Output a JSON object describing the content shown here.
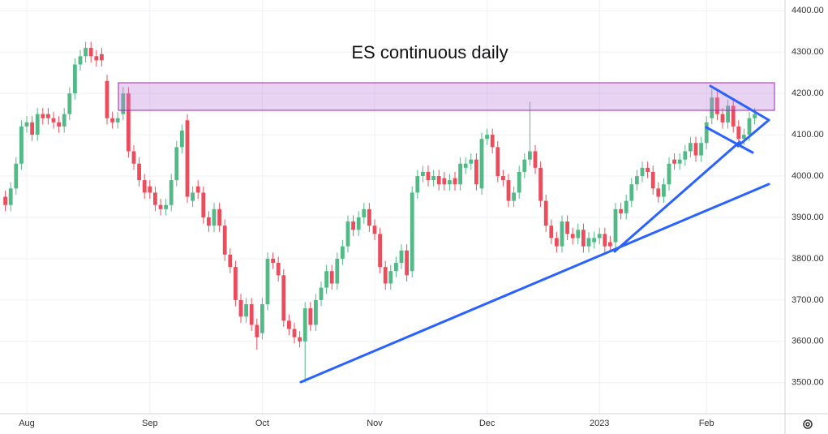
{
  "chart_data": {
    "type": "candlestick",
    "title": "ES continuous daily",
    "categories": [
      null,
      null,
      null,
      null,
      "Aug",
      null,
      null,
      null,
      null,
      null,
      null,
      null,
      null,
      null,
      null,
      null,
      null,
      null,
      null,
      null,
      null,
      null,
      null,
      null,
      null,
      null,
      null,
      "Sep",
      null,
      null,
      null,
      null,
      null,
      null,
      null,
      null,
      null,
      null,
      null,
      null,
      null,
      null,
      null,
      null,
      null,
      null,
      null,
      null,
      "Oct",
      null,
      null,
      null,
      null,
      null,
      null,
      null,
      null,
      null,
      null,
      null,
      null,
      null,
      null,
      null,
      null,
      null,
      null,
      null,
      null,
      "Nov",
      null,
      null,
      null,
      null,
      null,
      null,
      null,
      null,
      null,
      null,
      null,
      null,
      null,
      null,
      null,
      null,
      null,
      null,
      null,
      null,
      "Dec",
      null,
      null,
      null,
      null,
      null,
      null,
      null,
      null,
      null,
      null,
      null,
      null,
      null,
      null,
      null,
      null,
      null,
      null,
      null,
      null,
      "2023",
      null,
      null,
      null,
      null,
      null,
      null,
      null,
      null,
      null,
      null,
      null,
      null,
      null,
      null,
      null,
      null,
      null,
      null,
      null,
      "Feb",
      null,
      null,
      null,
      null,
      null,
      null,
      null,
      null,
      null
    ],
    "open": [
      3950,
      3930,
      3970,
      4030,
      4120,
      4130,
      4100,
      4150,
      4150,
      4140,
      4130,
      4120,
      4150,
      4200,
      4270,
      4290,
      4310,
      4290,
      4295,
      4230,
      4140,
      4130,
      4150,
      4200,
      4060,
      4030,
      3990,
      3975,
      3960,
      3930,
      3920,
      3930,
      3990,
      4070,
      4135,
      3940,
      3975,
      3960,
      3900,
      3880,
      3920,
      3880,
      3810,
      3780,
      3700,
      3660,
      3690,
      3640,
      3620,
      3690,
      3800,
      3790,
      3760,
      3650,
      3630,
      3610,
      3600,
      3680,
      3640,
      3700,
      3730,
      3770,
      3740,
      3800,
      3830,
      3890,
      3870,
      3900,
      3920,
      3880,
      3860,
      3780,
      3740,
      3770,
      3790,
      3820,
      3770,
      3960,
      4000,
      4010,
      3990,
      4000,
      3995,
      3980,
      3995,
      3980,
      4020,
      4030,
      4040,
      3970,
      4090,
      4100,
      4070,
      4000,
      3990,
      3940,
      3960,
      4010,
      4040,
      4060,
      4020,
      3940,
      3880,
      3850,
      3830,
      3890,
      3860,
      3850,
      3870,
      3830,
      3840,
      3850,
      3860,
      3840,
      3840,
      3920,
      3910,
      3940,
      3980,
      4000,
      4020,
      4010,
      3970,
      3950,
      3980,
      4040,
      4030,
      4040,
      4060,
      4080,
      4050,
      4080,
      4140,
      4190,
      4150,
      4130,
      4170,
      4120,
      4090,
      4100,
      4140
    ],
    "high": [
      3965,
      3985,
      4045,
      4135,
      4145,
      4145,
      4165,
      4165,
      4165,
      4155,
      4145,
      4165,
      4215,
      4285,
      4305,
      4325,
      4325,
      4305,
      4310,
      4245,
      4155,
      4155,
      4215,
      4215,
      4075,
      4045,
      4005,
      3990,
      3975,
      3945,
      3945,
      4005,
      4085,
      4125,
      4150,
      3975,
      3990,
      3975,
      3915,
      3935,
      3935,
      3895,
      3825,
      3795,
      3715,
      3705,
      3705,
      3655,
      3705,
      3815,
      3815,
      3805,
      3775,
      3665,
      3645,
      3625,
      3695,
      3695,
      3715,
      3745,
      3785,
      3785,
      3815,
      3845,
      3905,
      3905,
      3915,
      3935,
      3935,
      3895,
      3875,
      3795,
      3785,
      3805,
      3835,
      3835,
      3975,
      4015,
      4025,
      4025,
      4015,
      4015,
      4010,
      4005,
      4010,
      4045,
      4045,
      4055,
      4055,
      4105,
      4115,
      4115,
      4085,
      4015,
      4005,
      3975,
      4025,
      4055,
      4180,
      4075,
      4035,
      3955,
      3895,
      3865,
      3905,
      3905,
      3875,
      3885,
      3885,
      3865,
      3865,
      3875,
      3875,
      3855,
      3935,
      3935,
      3955,
      3995,
      4015,
      4035,
      4035,
      4025,
      3985,
      3995,
      4045,
      4055,
      4055,
      4075,
      4095,
      4095,
      4095,
      4145,
      4210,
      4205,
      4165,
      4185,
      4185,
      4135,
      4115,
      4155,
      4165
    ],
    "low": [
      3915,
      3915,
      3955,
      4015,
      4105,
      4085,
      4085,
      4125,
      4125,
      4115,
      4105,
      4105,
      4135,
      4185,
      4255,
      4275,
      4275,
      4265,
      4265,
      4125,
      4115,
      4115,
      4135,
      4045,
      4015,
      3975,
      3945,
      3945,
      3915,
      3905,
      3905,
      3915,
      3975,
      4055,
      3935,
      3925,
      3945,
      3885,
      3865,
      3865,
      3865,
      3795,
      3765,
      3685,
      3645,
      3645,
      3625,
      3580,
      3605,
      3675,
      3775,
      3745,
      3635,
      3615,
      3595,
      3585,
      3500,
      3625,
      3625,
      3685,
      3715,
      3725,
      3725,
      3785,
      3815,
      3855,
      3855,
      3885,
      3865,
      3845,
      3765,
      3725,
      3725,
      3755,
      3775,
      3745,
      3755,
      3945,
      3985,
      3975,
      3975,
      3965,
      3965,
      3965,
      3965,
      3965,
      4005,
      4015,
      3965,
      3955,
      4075,
      4055,
      3985,
      3975,
      3925,
      3925,
      3945,
      3995,
      4025,
      4005,
      3925,
      3865,
      3835,
      3815,
      3815,
      3845,
      3835,
      3835,
      3815,
      3815,
      3825,
      3835,
      3815,
      3815,
      3825,
      3895,
      3895,
      3925,
      3965,
      3985,
      3995,
      3955,
      3935,
      3935,
      3965,
      4015,
      4015,
      4025,
      4045,
      4035,
      4035,
      4065,
      4125,
      4135,
      4115,
      4115,
      4105,
      4075,
      4075,
      4085,
      4125
    ],
    "close": [
      3930,
      3970,
      4030,
      4120,
      4130,
      4100,
      4150,
      4140,
      4140,
      4130,
      4120,
      4150,
      4200,
      4270,
      4290,
      4310,
      4290,
      4280,
      4280,
      4140,
      4130,
      4140,
      4200,
      4060,
      4030,
      3990,
      3960,
      3960,
      3930,
      3920,
      3930,
      3990,
      4070,
      4110,
      3950,
      3960,
      3960,
      3900,
      3880,
      3920,
      3880,
      3810,
      3780,
      3700,
      3660,
      3690,
      3640,
      3610,
      3690,
      3800,
      3790,
      3760,
      3650,
      3630,
      3610,
      3600,
      3680,
      3640,
      3700,
      3730,
      3770,
      3740,
      3800,
      3830,
      3890,
      3870,
      3900,
      3920,
      3880,
      3860,
      3780,
      3740,
      3770,
      3790,
      3820,
      3760,
      3960,
      4000,
      4010,
      3990,
      4000,
      3980,
      3980,
      3990,
      3980,
      4030,
      4030,
      4040,
      3980,
      4090,
      4100,
      4070,
      4000,
      3990,
      3940,
      3960,
      4010,
      4040,
      4060,
      4020,
      3940,
      3880,
      3850,
      3830,
      3890,
      3860,
      3850,
      3870,
      3830,
      3850,
      3850,
      3860,
      3830,
      3830,
      3920,
      3910,
      3940,
      3980,
      4000,
      4020,
      4010,
      3970,
      3950,
      3980,
      4030,
      4030,
      4040,
      4060,
      4080,
      4050,
      4080,
      4130,
      4190,
      4150,
      4130,
      4170,
      4120,
      4090,
      4100,
      4140,
      4150
    ],
    "up_color": "#53b987",
    "down_color": "#eb4d5c",
    "ylim": [
      3425,
      4426
    ],
    "yticks": [
      {
        "value": 3500,
        "label": "3500.00"
      },
      {
        "value": 3600,
        "label": "3600.00"
      },
      {
        "value": 3700,
        "label": "3700.00"
      },
      {
        "value": 3800,
        "label": "3800.00"
      },
      {
        "value": 3900,
        "label": "3900.00"
      },
      {
        "value": 4000,
        "label": "4000.00"
      },
      {
        "value": 4100,
        "label": "4100.00"
      },
      {
        "value": 4200,
        "label": "4200.00"
      },
      {
        "value": 4300,
        "label": "4300.00"
      },
      {
        "value": 4400,
        "label": "4400.00"
      }
    ],
    "grid": true
  }
}
